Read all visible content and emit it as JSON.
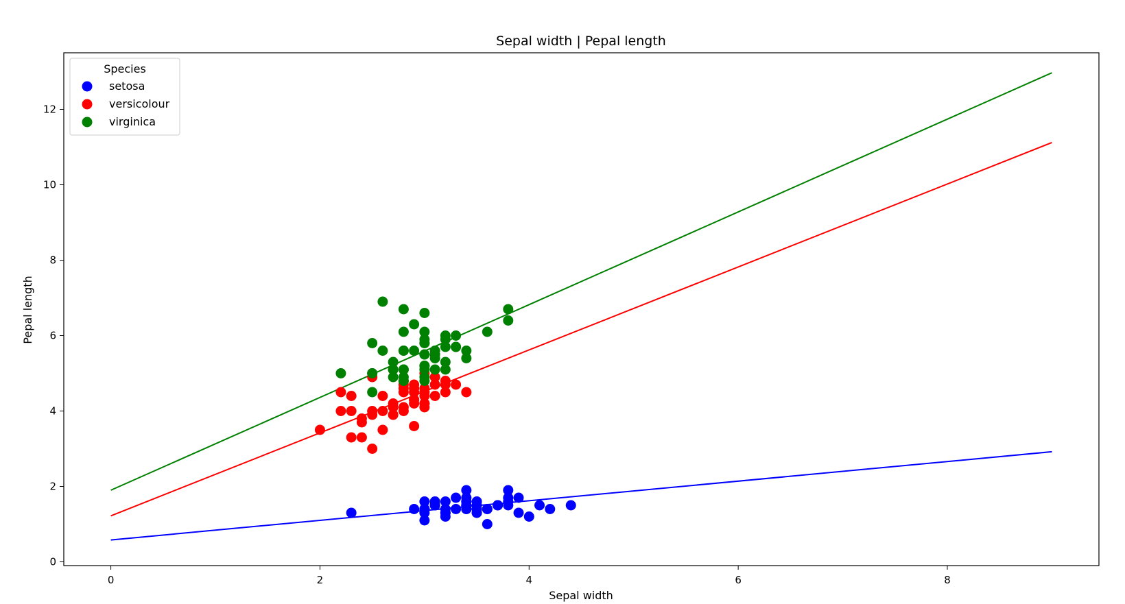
{
  "chart_data": {
    "type": "scatter",
    "title": "Sepal width | Pepal length",
    "xlabel": "Sepal width",
    "ylabel": "Pepal length",
    "xlim": [
      -0.45,
      9.45
    ],
    "ylim": [
      -0.1,
      13.5
    ],
    "xticks": [
      0,
      2,
      4,
      6,
      8
    ],
    "yticks": [
      0,
      2,
      4,
      6,
      8,
      10,
      12
    ],
    "grid": false,
    "legend": {
      "title": "Species",
      "placement": "top-left"
    },
    "series": [
      {
        "name": "setosa",
        "color": "#0000ff",
        "points": [
          [
            3.5,
            1.4
          ],
          [
            3.0,
            1.4
          ],
          [
            3.2,
            1.3
          ],
          [
            3.1,
            1.5
          ],
          [
            3.6,
            1.4
          ],
          [
            3.9,
            1.7
          ],
          [
            3.4,
            1.4
          ],
          [
            3.4,
            1.5
          ],
          [
            2.9,
            1.4
          ],
          [
            3.1,
            1.5
          ],
          [
            3.7,
            1.5
          ],
          [
            3.4,
            1.6
          ],
          [
            3.0,
            1.4
          ],
          [
            3.0,
            1.1
          ],
          [
            4.0,
            1.2
          ],
          [
            4.4,
            1.5
          ],
          [
            3.9,
            1.3
          ],
          [
            3.5,
            1.4
          ],
          [
            3.8,
            1.7
          ],
          [
            3.8,
            1.5
          ],
          [
            3.4,
            1.7
          ],
          [
            3.7,
            1.5
          ],
          [
            3.6,
            1.0
          ],
          [
            3.3,
            1.7
          ],
          [
            3.4,
            1.9
          ],
          [
            3.0,
            1.6
          ],
          [
            3.4,
            1.6
          ],
          [
            3.5,
            1.5
          ],
          [
            3.4,
            1.4
          ],
          [
            3.2,
            1.6
          ],
          [
            3.1,
            1.6
          ],
          [
            3.4,
            1.5
          ],
          [
            4.1,
            1.5
          ],
          [
            4.2,
            1.4
          ],
          [
            3.1,
            1.5
          ],
          [
            3.2,
            1.2
          ],
          [
            3.5,
            1.3
          ],
          [
            3.6,
            1.4
          ],
          [
            3.0,
            1.3
          ],
          [
            3.4,
            1.5
          ],
          [
            3.5,
            1.3
          ],
          [
            2.3,
            1.3
          ],
          [
            3.2,
            1.3
          ],
          [
            3.5,
            1.6
          ],
          [
            3.8,
            1.9
          ],
          [
            3.0,
            1.4
          ],
          [
            3.8,
            1.6
          ],
          [
            3.2,
            1.4
          ],
          [
            3.7,
            1.5
          ],
          [
            3.3,
            1.4
          ]
        ],
        "fit": {
          "intercept": 0.58,
          "slope": 0.26
        }
      },
      {
        "name": "versicolour",
        "color": "#ff0000",
        "points": [
          [
            3.2,
            4.7
          ],
          [
            3.2,
            4.5
          ],
          [
            3.1,
            4.9
          ],
          [
            2.3,
            4.0
          ],
          [
            2.8,
            4.6
          ],
          [
            2.8,
            4.5
          ],
          [
            3.3,
            4.7
          ],
          [
            2.4,
            3.3
          ],
          [
            2.9,
            4.6
          ],
          [
            2.7,
            3.9
          ],
          [
            2.0,
            3.5
          ],
          [
            3.0,
            4.2
          ],
          [
            2.2,
            4.0
          ],
          [
            2.9,
            4.7
          ],
          [
            2.9,
            3.6
          ],
          [
            3.1,
            4.4
          ],
          [
            3.0,
            4.5
          ],
          [
            2.7,
            4.1
          ],
          [
            2.2,
            4.5
          ],
          [
            2.5,
            3.9
          ],
          [
            3.2,
            4.8
          ],
          [
            2.8,
            4.0
          ],
          [
            2.5,
            4.9
          ],
          [
            2.8,
            4.7
          ],
          [
            2.9,
            4.3
          ],
          [
            3.0,
            4.4
          ],
          [
            2.8,
            4.8
          ],
          [
            3.0,
            5.0
          ],
          [
            2.9,
            4.5
          ],
          [
            2.6,
            3.5
          ],
          [
            2.4,
            3.8
          ],
          [
            2.4,
            3.7
          ],
          [
            2.7,
            3.9
          ],
          [
            2.7,
            5.1
          ],
          [
            3.0,
            4.5
          ],
          [
            3.4,
            4.5
          ],
          [
            3.1,
            4.7
          ],
          [
            2.3,
            4.4
          ],
          [
            3.0,
            4.1
          ],
          [
            2.5,
            4.0
          ],
          [
            2.6,
            4.4
          ],
          [
            3.0,
            4.6
          ],
          [
            2.6,
            4.0
          ],
          [
            2.3,
            3.3
          ],
          [
            2.7,
            4.2
          ],
          [
            3.0,
            4.2
          ],
          [
            2.9,
            4.2
          ],
          [
            2.9,
            4.3
          ],
          [
            2.5,
            3.0
          ],
          [
            2.8,
            4.1
          ]
        ],
        "fit": {
          "intercept": 1.22,
          "slope": 1.1
        }
      },
      {
        "name": "virginica",
        "color": "#008000",
        "points": [
          [
            3.3,
            6.0
          ],
          [
            2.7,
            5.1
          ],
          [
            3.0,
            5.9
          ],
          [
            2.9,
            5.6
          ],
          [
            3.0,
            5.8
          ],
          [
            3.0,
            6.6
          ],
          [
            2.5,
            4.5
          ],
          [
            2.9,
            6.3
          ],
          [
            2.5,
            5.8
          ],
          [
            3.6,
            6.1
          ],
          [
            3.2,
            5.1
          ],
          [
            2.7,
            5.3
          ],
          [
            3.0,
            5.5
          ],
          [
            2.5,
            5.0
          ],
          [
            2.8,
            5.1
          ],
          [
            3.2,
            5.3
          ],
          [
            3.0,
            5.5
          ],
          [
            3.8,
            6.7
          ],
          [
            2.6,
            6.9
          ],
          [
            2.2,
            5.0
          ],
          [
            3.2,
            5.7
          ],
          [
            2.8,
            4.9
          ],
          [
            2.8,
            6.7
          ],
          [
            2.7,
            4.9
          ],
          [
            3.3,
            5.7
          ],
          [
            3.2,
            6.0
          ],
          [
            2.8,
            4.8
          ],
          [
            3.0,
            4.9
          ],
          [
            2.8,
            5.6
          ],
          [
            3.0,
            5.8
          ],
          [
            2.8,
            6.1
          ],
          [
            3.8,
            6.4
          ],
          [
            2.8,
            5.6
          ],
          [
            2.8,
            5.1
          ],
          [
            2.6,
            5.6
          ],
          [
            3.0,
            6.1
          ],
          [
            3.4,
            5.6
          ],
          [
            3.1,
            5.5
          ],
          [
            3.0,
            4.8
          ],
          [
            3.1,
            5.4
          ],
          [
            3.1,
            5.6
          ],
          [
            3.1,
            5.1
          ],
          [
            2.7,
            5.1
          ],
          [
            3.2,
            5.9
          ],
          [
            3.3,
            5.7
          ],
          [
            3.0,
            5.2
          ],
          [
            2.5,
            5.0
          ],
          [
            3.0,
            5.2
          ],
          [
            3.4,
            5.4
          ],
          [
            3.0,
            5.1
          ]
        ],
        "fit": {
          "intercept": 1.9,
          "slope": 1.23
        }
      }
    ]
  }
}
